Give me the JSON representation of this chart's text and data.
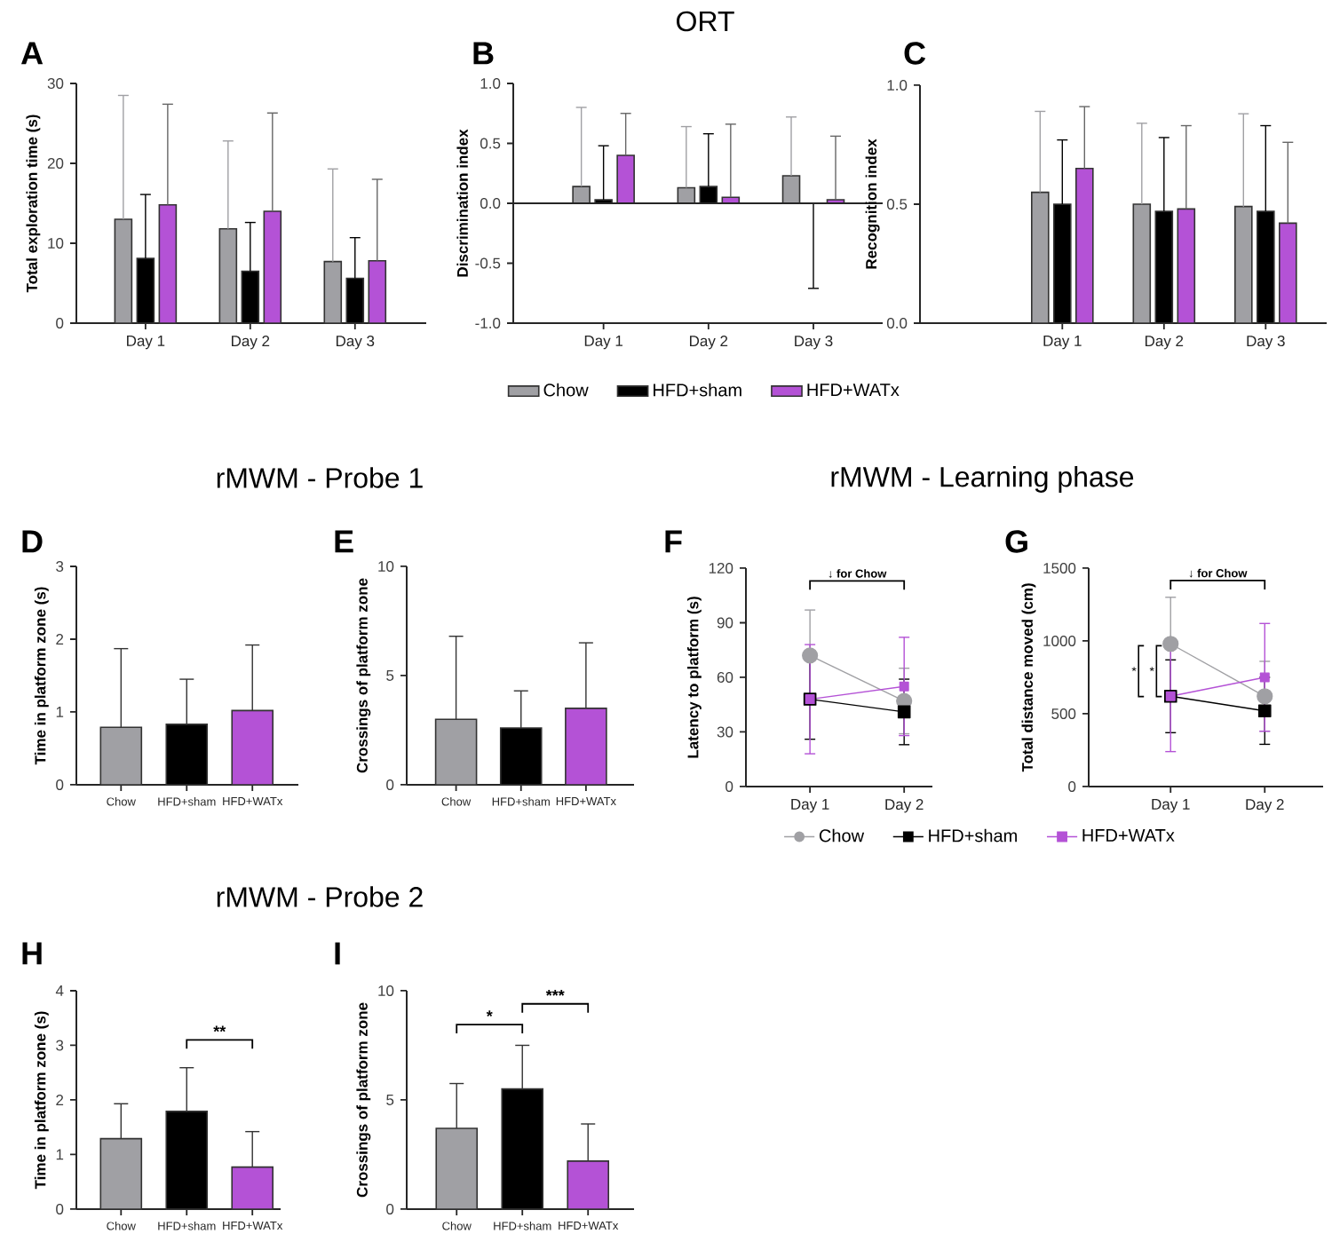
{
  "chart_data": [
    {
      "type": "bar",
      "title": "A",
      "ylabel": "Total exploration time (s)",
      "categories": [
        "Day 1",
        "Day 2",
        "Day 3"
      ],
      "ylim": [
        0,
        30
      ],
      "yticks": [
        0,
        10,
        20,
        30
      ],
      "series": [
        {
          "color": "#a0a0a4",
          "values": [
            13.0,
            11.8,
            7.7
          ],
          "errors": [
            [
              13.0,
              28.5
            ],
            [
              11.8,
              22.8
            ],
            [
              7.7,
              19.3
            ]
          ]
        },
        {
          "color": "#000000",
          "values": [
            8.1,
            6.5,
            5.6
          ],
          "errors": [
            [
              8.1,
              16.1
            ],
            [
              6.5,
              12.6
            ],
            [
              5.6,
              10.7
            ]
          ]
        },
        {
          "color": "#b452d6",
          "values": [
            14.8,
            14.0,
            7.8
          ],
          "errors": [
            [
              14.8,
              27.4
            ],
            [
              14.0,
              26.3
            ],
            [
              7.8,
              18.0
            ]
          ]
        }
      ]
    },
    {
      "type": "bar",
      "title": "B",
      "ylabel": "Discrimination index",
      "annotations": [
        "ORT"
      ],
      "categories": [
        "Day 1",
        "Day 2",
        "Day 3"
      ],
      "ylim": [
        -1,
        1
      ],
      "yticks": [
        {
          "value": -1,
          "label": "-1.0"
        },
        {
          "value": -0.5,
          "label": "-0.5"
        },
        {
          "value": 0,
          "label": "0.0"
        },
        {
          "value": 0.5,
          "label": "0.5"
        },
        {
          "value": 1,
          "label": "1.0"
        }
      ],
      "ref_lines": [
        {
          "axis": "y",
          "value": 0
        }
      ],
      "legend": "bottom",
      "series": [
        {
          "name": "Chow",
          "color": "#a0a0a4",
          "values": [
            0.14,
            0.13,
            0.23
          ],
          "errors": [
            [
              0.14,
              0.8
            ],
            [
              0.13,
              0.64
            ],
            [
              0.23,
              0.72
            ]
          ]
        },
        {
          "name": "HFD+sham",
          "color": "#000000",
          "values": [
            0.03,
            0.14,
            0
          ],
          "errors": [
            [
              0.03,
              0.48
            ],
            [
              0.14,
              0.58
            ],
            [
              -0.71,
              0
            ]
          ]
        },
        {
          "name": "HFD+WATx",
          "color": "#b452d6",
          "values": [
            0.4,
            0.05,
            0.03
          ],
          "errors": [
            [
              0.4,
              0.75
            ],
            [
              0.05,
              0.66
            ],
            [
              0.03,
              0.56
            ]
          ]
        }
      ]
    },
    {
      "type": "bar",
      "title": "C",
      "ylabel": "Recognition index",
      "categories": [
        "Day 1",
        "Day 2",
        "Day 3"
      ],
      "ylim": [
        0,
        1
      ],
      "yticks": [
        {
          "value": 0,
          "label": "0.0"
        },
        {
          "value": 0.5,
          "label": "0.5"
        },
        {
          "value": 1,
          "label": "1.0"
        }
      ],
      "series": [
        {
          "color": "#a0a0a4",
          "values": [
            0.55,
            0.5,
            0.49
          ],
          "errors": [
            [
              0.55,
              0.89
            ],
            [
              0.5,
              0.84
            ],
            [
              0.49,
              0.88
            ]
          ]
        },
        {
          "color": "#000000",
          "values": [
            0.5,
            0.47,
            0.47
          ],
          "errors": [
            [
              0.5,
              0.77
            ],
            [
              0.47,
              0.78
            ],
            [
              0.47,
              0.83
            ]
          ]
        },
        {
          "color": "#b452d6",
          "values": [
            0.65,
            0.48,
            0.42
          ],
          "errors": [
            [
              0.65,
              0.91
            ],
            [
              0.48,
              0.83
            ],
            [
              0.42,
              0.76
            ]
          ]
        }
      ]
    },
    {
      "type": "bar",
      "title": "D",
      "ylabel": "Time in platform zone (s)",
      "annotations": [
        "rMWM - Probe 1"
      ],
      "categories": [
        "Chow",
        "HFD+sham",
        "HFD+WATx"
      ],
      "ylim": [
        0,
        3
      ],
      "yticks": [
        0,
        1,
        2,
        3
      ],
      "values": [
        0.79,
        0.83,
        1.02
      ],
      "colors": [
        "#a0a0a4",
        "#000000",
        "#b452d6"
      ],
      "errors": [
        [
          0.79,
          1.87
        ],
        [
          0.83,
          1.45
        ],
        [
          1.02,
          1.92
        ]
      ]
    },
    {
      "type": "bar",
      "title": "E",
      "ylabel": "Crossings of platform zone",
      "categories": [
        "Chow",
        "HFD+sham",
        "HFD+WATx"
      ],
      "ylim": [
        0,
        10
      ],
      "yticks": [
        0,
        5,
        10
      ],
      "values": [
        3.0,
        2.6,
        3.5
      ],
      "colors": [
        "#a0a0a4",
        "#000000",
        "#b452d6"
      ],
      "errors": [
        [
          3.0,
          6.8
        ],
        [
          2.6,
          4.3
        ],
        [
          3.5,
          6.5
        ]
      ]
    },
    {
      "type": "line",
      "title": "F",
      "ylabel": "Latency to platform (s)",
      "annotations": [
        "rMWM - Learning phase",
        "↓ for Chow"
      ],
      "categories": [
        "Day 1",
        "Day 2"
      ],
      "ylim": [
        0,
        120
      ],
      "yticks": [
        0,
        30,
        60,
        90,
        120
      ],
      "legend": "bottom",
      "series": [
        {
          "name": "Chow",
          "color": "#a0a0a4",
          "marker": "circle",
          "values": [
            72,
            47
          ],
          "errors": [
            25,
            18
          ]
        },
        {
          "name": "HFD+sham",
          "color": "#000000",
          "marker": "square",
          "values": [
            48,
            41
          ],
          "errors": [
            22,
            18
          ]
        },
        {
          "name": "HFD+WATx",
          "color": "#b452d6",
          "marker": "square",
          "values": [
            48,
            55
          ],
          "errors": [
            30,
            27
          ]
        }
      ]
    },
    {
      "type": "line",
      "title": "G",
      "ylabel": "Total distance moved (cm)",
      "annotations": [
        "↓ for Chow",
        "*",
        "*"
      ],
      "categories": [
        "Day 1",
        "Day 2"
      ],
      "ylim": [
        0,
        1500
      ],
      "yticks": [
        0,
        500,
        1000,
        1500
      ],
      "series": [
        {
          "color": "#a0a0a4",
          "marker": "circle",
          "values": [
            980,
            620
          ],
          "errors": [
            320,
            240
          ]
        },
        {
          "color": "#000000",
          "marker": "square",
          "values": [
            620,
            520
          ],
          "errors": [
            250,
            230
          ]
        },
        {
          "color": "#b452d6",
          "marker": "square",
          "values": [
            620,
            750
          ],
          "errors": [
            380,
            370
          ]
        }
      ]
    },
    {
      "type": "bar",
      "title": "H",
      "ylabel": "Time in platform zone (s)",
      "annotations": [
        "rMWM - Probe 2",
        "**"
      ],
      "categories": [
        "Chow",
        "HFD+sham",
        "HFD+WATx"
      ],
      "ylim": [
        0,
        4
      ],
      "yticks": [
        0,
        1,
        2,
        3,
        4
      ],
      "values": [
        1.29,
        1.79,
        0.77
      ],
      "colors": [
        "#a0a0a4",
        "#000000",
        "#b452d6"
      ],
      "errors": [
        [
          1.29,
          1.93
        ],
        [
          1.79,
          2.59
        ],
        [
          0.77,
          1.42
        ]
      ]
    },
    {
      "type": "bar",
      "title": "I",
      "ylabel": "Crossings of platform zone",
      "annotations": [
        "*",
        "***"
      ],
      "categories": [
        "Chow",
        "HFD+sham",
        "HFD+WATx"
      ],
      "ylim": [
        0,
        10
      ],
      "yticks": [
        0,
        5,
        10
      ],
      "values": [
        3.7,
        5.5,
        2.2
      ],
      "colors": [
        "#a0a0a4",
        "#000000",
        "#b452d6"
      ],
      "errors": [
        [
          3.7,
          5.75
        ],
        [
          5.5,
          7.5
        ],
        [
          2.2,
          3.9
        ]
      ]
    }
  ]
}
